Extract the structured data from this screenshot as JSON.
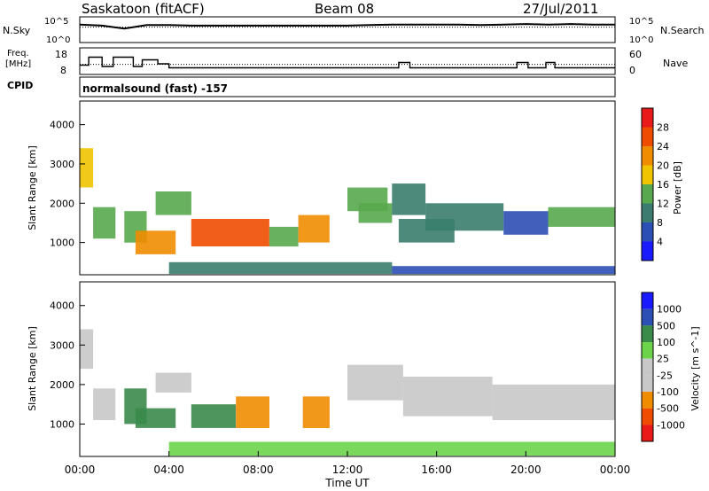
{
  "header": {
    "station": "Saskatoon (fitACF)",
    "beam": "Beam 08",
    "date": "27/Jul/2011"
  },
  "nsky_panel": {
    "left_label": "N.Sky",
    "left_ticks": [
      "10^5",
      "10^0"
    ],
    "right_ticks": [
      "10^5",
      "10^0"
    ],
    "right_label": "N.Search"
  },
  "freq_panel": {
    "left_label_1": "Freq.",
    "left_label_2": "[MHz]",
    "left_ticks": [
      "18",
      "8"
    ],
    "right_ticks": [
      "60",
      "0"
    ],
    "right_label": "Nave"
  },
  "cpid": {
    "label": "CPID",
    "value": "normalsound (fast) -157"
  },
  "colors": {
    "power_scale": [
      "#1a1aff",
      "#2b4fb5",
      "#3a7d6e",
      "#58a84d",
      "#f0c400",
      "#f08c00",
      "#f04c00",
      "#e81a1a"
    ],
    "velocity_scale": [
      "#e81a1a",
      "#f04c00",
      "#f08c00",
      "#c8c8c8",
      "#c8c8c8",
      "#6cd44a",
      "#3a8a4a",
      "#2b4fb5",
      "#1a1aff"
    ]
  },
  "chart_data": [
    {
      "type": "line",
      "panel": "N.Sky / N.Search",
      "ylabel": "N.Sky",
      "y2label": "N.Search",
      "yscale": "log",
      "ylim": [
        1,
        100000
      ],
      "x": [
        "00:00",
        "01:00",
        "02:00",
        "03:00",
        "04:00",
        "05:00",
        "06:00",
        "07:00",
        "08:00",
        "09:00",
        "10:00",
        "11:00",
        "12:00",
        "13:00",
        "14:00",
        "15:00",
        "16:00",
        "17:00",
        "18:00",
        "19:00",
        "20:00",
        "21:00",
        "22:00",
        "23:00",
        "24:00"
      ],
      "series": [
        {
          "name": "N.Sky",
          "values": [
            3000,
            2000,
            500,
            2500,
            2500,
            2000,
            2000,
            2000,
            2000,
            2000,
            2000,
            2000,
            2000,
            2500,
            3000,
            3000,
            3000,
            3000,
            2500,
            3000,
            4000,
            3000,
            4000,
            3000,
            3000
          ]
        }
      ]
    },
    {
      "type": "line",
      "panel": "Freq. / Nave",
      "ylabel": "Freq. [MHz]",
      "y2label": "Nave",
      "ylim": [
        8,
        18
      ],
      "y2lim": [
        0,
        60
      ],
      "x_hours": [
        0,
        0.4,
        0.4,
        1.0,
        1.0,
        1.5,
        1.5,
        2.4,
        2.4,
        2.8,
        2.8,
        3.5,
        3.5,
        4.0,
        4.0,
        14.3,
        14.3,
        14.8,
        14.8,
        19.6,
        19.6,
        20.1,
        20.1,
        20.9,
        20.9,
        21.3,
        21.3,
        24.0
      ],
      "values": [
        11.5,
        11.5,
        14.5,
        14.5,
        11,
        11,
        14.5,
        14.5,
        11,
        11,
        13.5,
        13.5,
        12,
        12,
        10.5,
        10.5,
        12.5,
        12.5,
        10.5,
        10.5,
        12.5,
        12.5,
        10.5,
        10.5,
        12.5,
        12.5,
        10.5,
        10.5
      ]
    },
    {
      "type": "heatmap",
      "panel": "Power",
      "title": "",
      "xlabel": "",
      "ylabel": "Slant Range [km]",
      "xlim_hours": [
        0,
        24
      ],
      "ylim": [
        180,
        4600
      ],
      "x_ticks": [
        "00:00",
        "04:00",
        "08:00",
        "12:00",
        "16:00",
        "20:00",
        "00:00"
      ],
      "y_ticks": [
        1000,
        2000,
        3000,
        4000
      ],
      "colorbar_label": "Power [dB]",
      "colorbar_ticks": [
        4,
        8,
        12,
        16,
        20,
        24,
        28
      ],
      "patches": [
        {
          "t0": 0.0,
          "t1": 0.6,
          "r0": 2400,
          "r1": 3400,
          "v": 18
        },
        {
          "t0": 0.6,
          "t1": 1.6,
          "r0": 1100,
          "r1": 1900,
          "v": 14
        },
        {
          "t0": 2.0,
          "t1": 3.0,
          "r0": 1000,
          "r1": 1800,
          "v": 16
        },
        {
          "t0": 2.5,
          "t1": 4.3,
          "r0": 700,
          "r1": 1300,
          "v": 24
        },
        {
          "t0": 3.4,
          "t1": 5.0,
          "r0": 1700,
          "r1": 2300,
          "v": 16
        },
        {
          "t0": 5.0,
          "t1": 8.5,
          "r0": 900,
          "r1": 1600,
          "v": 26
        },
        {
          "t0": 8.5,
          "t1": 9.8,
          "r0": 900,
          "r1": 1400,
          "v": 14
        },
        {
          "t0": 9.8,
          "t1": 11.2,
          "r0": 1000,
          "r1": 1700,
          "v": 24
        },
        {
          "t0": 12.0,
          "t1": 13.8,
          "r0": 1800,
          "r1": 2400,
          "v": 16
        },
        {
          "t0": 12.5,
          "t1": 14.0,
          "r0": 1500,
          "r1": 2000,
          "v": 14
        },
        {
          "t0": 14.0,
          "t1": 15.5,
          "r0": 1700,
          "r1": 2500,
          "v": 12
        },
        {
          "t0": 14.3,
          "t1": 16.8,
          "r0": 1000,
          "r1": 1600,
          "v": 10
        },
        {
          "t0": 15.5,
          "t1": 19.0,
          "r0": 1300,
          "r1": 2000,
          "v": 12
        },
        {
          "t0": 19.0,
          "t1": 21.0,
          "r0": 1200,
          "r1": 1800,
          "v": 8
        },
        {
          "t0": 21.0,
          "t1": 24.0,
          "r0": 1400,
          "r1": 1900,
          "v": 16
        },
        {
          "t0": 4.0,
          "t1": 14.0,
          "r0": 200,
          "r1": 500,
          "v": 10
        },
        {
          "t0": 14.0,
          "t1": 24.0,
          "r0": 200,
          "r1": 400,
          "v": 8
        }
      ]
    },
    {
      "type": "heatmap",
      "panel": "Velocity",
      "title": "",
      "xlabel": "Time UT",
      "ylabel": "Slant Range [km]",
      "xlim_hours": [
        0,
        24
      ],
      "ylim": [
        180,
        4600
      ],
      "x_ticks": [
        "00:00",
        "04:00",
        "08:00",
        "12:00",
        "16:00",
        "20:00",
        "00:00"
      ],
      "y_ticks": [
        1000,
        2000,
        3000,
        4000
      ],
      "colorbar_label": "Velocity [m s^-1]",
      "colorbar_ticks": [
        "1000",
        "500",
        "100",
        "25",
        "-25",
        "-100",
        "-500",
        "-1000"
      ],
      "patches": [
        {
          "t0": 0.0,
          "t1": 0.6,
          "r0": 2400,
          "r1": 3400,
          "v": 0
        },
        {
          "t0": 0.6,
          "t1": 1.6,
          "r0": 1100,
          "r1": 1900,
          "v": 0
        },
        {
          "t0": 2.0,
          "t1": 3.0,
          "r0": 1000,
          "r1": 1900,
          "v": 200
        },
        {
          "t0": 2.5,
          "t1": 4.3,
          "r0": 900,
          "r1": 1400,
          "v": 300
        },
        {
          "t0": 3.4,
          "t1": 5.0,
          "r0": 1800,
          "r1": 2300,
          "v": 0
        },
        {
          "t0": 5.0,
          "t1": 7.0,
          "r0": 900,
          "r1": 1500,
          "v": 300
        },
        {
          "t0": 7.0,
          "t1": 8.5,
          "r0": 900,
          "r1": 1700,
          "v": -300
        },
        {
          "t0": 10.0,
          "t1": 11.2,
          "r0": 900,
          "r1": 1700,
          "v": -200
        },
        {
          "t0": 12.0,
          "t1": 14.5,
          "r0": 1600,
          "r1": 2500,
          "v": 0
        },
        {
          "t0": 14.5,
          "t1": 18.5,
          "r0": 1200,
          "r1": 2200,
          "v": 0
        },
        {
          "t0": 18.5,
          "t1": 24.0,
          "r0": 1100,
          "r1": 2000,
          "v": 0
        },
        {
          "t0": 4.0,
          "t1": 24.0,
          "r0": 200,
          "r1": 550,
          "v": 40
        }
      ]
    }
  ]
}
